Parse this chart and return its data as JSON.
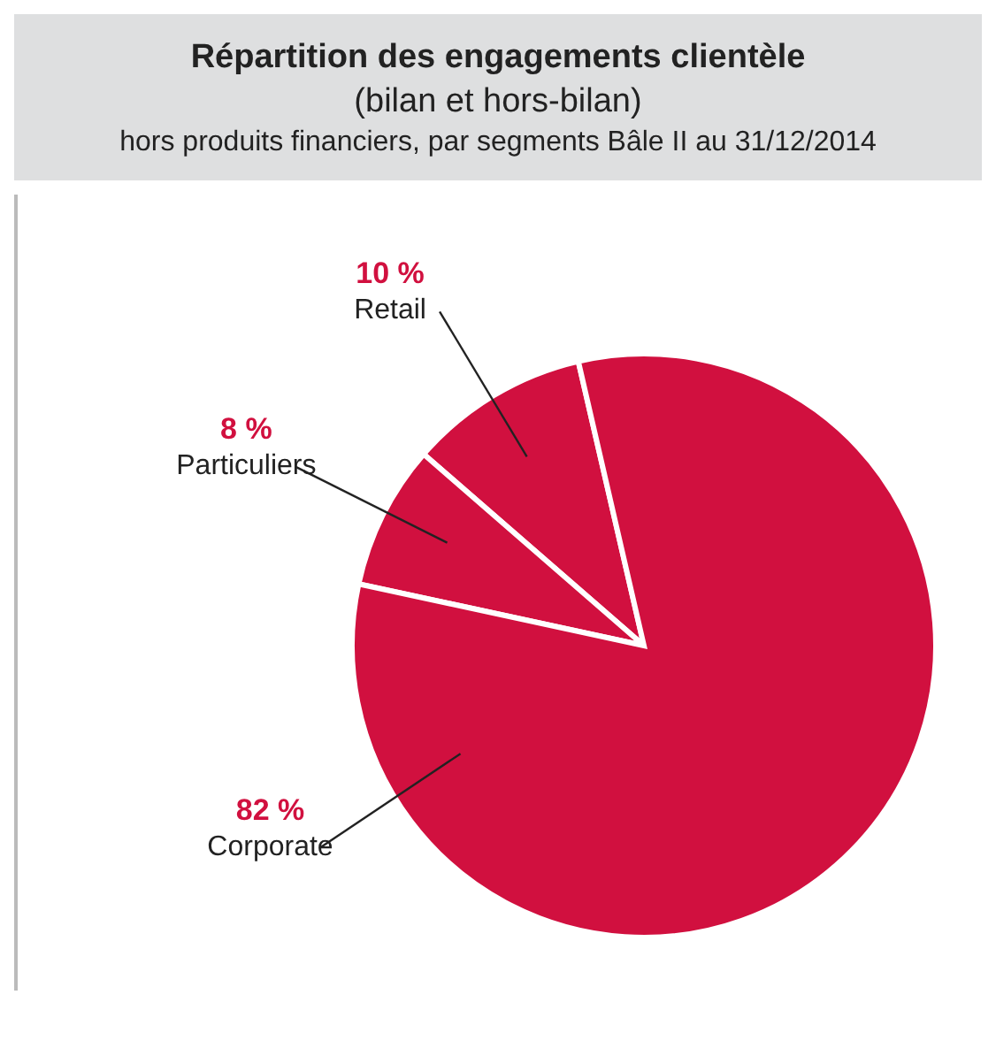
{
  "chart_data": {
    "type": "pie",
    "title": "Répartition des engagements clientèle",
    "subtitle": "(bilan et hors-bilan)",
    "annotations": [
      "hors produits financiers, par segments Bâle II au 31/12/2014"
    ],
    "categories": [
      "Retail",
      "Particuliers",
      "Corporate"
    ],
    "values": [
      10,
      8,
      82
    ],
    "colors": [
      "#d1103f",
      "#d1103f",
      "#d1103f"
    ],
    "value_labels": [
      "10 %",
      "8 %",
      "82 %"
    ],
    "legend": false
  }
}
